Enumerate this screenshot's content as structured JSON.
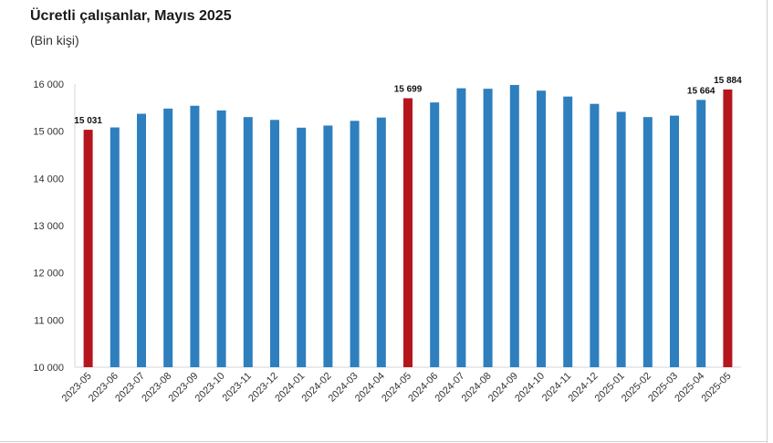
{
  "title": "Ücretli çalışanlar, Mayıs 2025",
  "subtitle": "(Bin kişi)",
  "colors": {
    "regular": "#2e7fbe",
    "highlight": "#b5161e"
  },
  "chart_data": {
    "type": "bar",
    "categories": [
      "2023-05",
      "2023-06",
      "2023-07",
      "2023-08",
      "2023-09",
      "2023-10",
      "2023-11",
      "2023-12",
      "2024-01",
      "2024-02",
      "2024-03",
      "2024-04",
      "2024-05",
      "2024-06",
      "2024-07",
      "2024-08",
      "2024-09",
      "2024-10",
      "2024-11",
      "2024-12",
      "2025-01",
      "2025-02",
      "2025-03",
      "2025-04",
      "2025-05"
    ],
    "values": [
      15031,
      15080,
      15370,
      15480,
      15540,
      15440,
      15300,
      15240,
      15075,
      15120,
      15220,
      15290,
      15699,
      15610,
      15910,
      15900,
      15980,
      15860,
      15735,
      15580,
      15410,
      15300,
      15330,
      15664,
      15884
    ],
    "highlighted": [
      "2023-05",
      "2024-05",
      "2025-05"
    ],
    "data_labels": [
      {
        "category": "2023-05",
        "text": "15 031"
      },
      {
        "category": "2024-05",
        "text": "15 699"
      },
      {
        "category": "2025-04",
        "text": "15 664"
      },
      {
        "category": "2025-05",
        "text": "15 884"
      }
    ],
    "ylim": [
      10000,
      16000
    ],
    "yticks": [
      10000,
      11000,
      12000,
      13000,
      14000,
      15000,
      16000
    ],
    "ytick_labels": [
      "10 000",
      "11 000",
      "12 000",
      "13 000",
      "14 000",
      "15 000",
      "16 000"
    ],
    "grid": false,
    "legend": "none",
    "xlabel": "",
    "ylabel": ""
  }
}
